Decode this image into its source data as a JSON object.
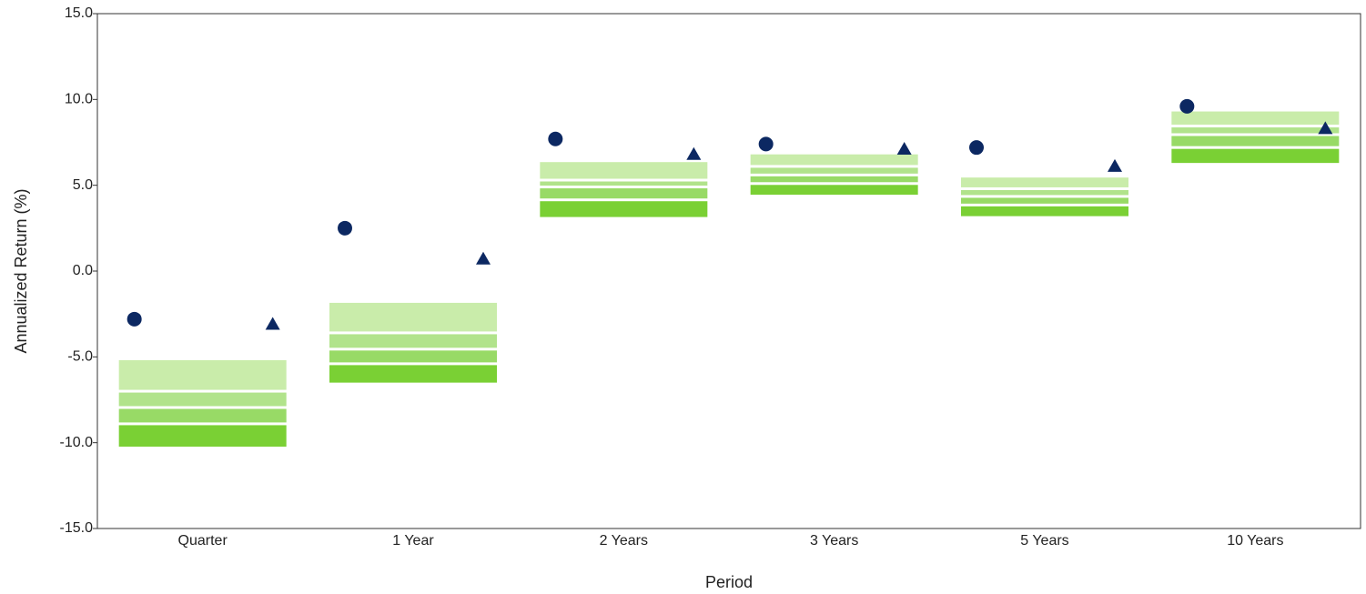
{
  "chart_data": {
    "type": "floating-bar",
    "x_label": "Period",
    "y_label": "Annualized Return (%)",
    "categories": [
      "Quarter",
      "1 Year",
      "2 Years",
      "3 Years",
      "5 Years",
      "10 Years"
    ],
    "bands": [
      [
        -5.19,
        -7.0,
        -7.95,
        -8.9,
        -10.23
      ],
      [
        -1.85,
        -3.6,
        -4.55,
        -5.4,
        -6.5
      ],
      [
        6.35,
        5.3,
        4.9,
        4.15,
        3.15
      ],
      [
        6.8,
        6.1,
        5.6,
        5.1,
        4.45
      ],
      [
        5.45,
        4.8,
        4.35,
        3.85,
        3.2
      ],
      [
        9.3,
        8.45,
        7.95,
        7.2,
        6.3
      ]
    ],
    "band_colors": [
      "#c9ecaa",
      "#b1e38b",
      "#98da66",
      "#7ad034"
    ],
    "series": [
      {
        "marker": "circle",
        "color": "#0c2862",
        "values": [
          -2.8,
          2.5,
          7.7,
          7.4,
          7.2,
          9.6
        ]
      },
      {
        "marker": "triangle",
        "color": "#0c2862",
        "values": [
          -3.1,
          0.7,
          6.8,
          7.1,
          6.1,
          8.3
        ]
      }
    ],
    "ylim": [
      -15,
      15
    ],
    "yticks": [
      {
        "value": -15,
        "label": "-15.0"
      },
      {
        "value": -10,
        "label": "-10.0"
      },
      {
        "value": -5,
        "label": "-5.0"
      },
      {
        "value": 0,
        "label": "0.0"
      },
      {
        "value": 5,
        "label": "5.0"
      },
      {
        "value": 10,
        "label": "10.0"
      },
      {
        "value": 15,
        "label": "15.0"
      }
    ]
  }
}
